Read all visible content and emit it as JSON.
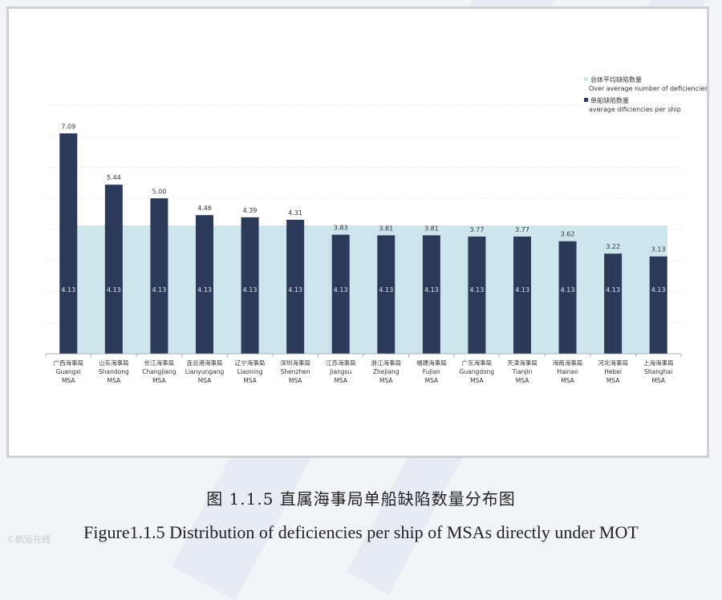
{
  "chart_data": {
    "type": "bar",
    "categories": [
      {
        "cn": "广西海事局",
        "en": "Guangxi",
        "suffix": "MSA"
      },
      {
        "cn": "山东海事局",
        "en": "Shandong",
        "suffix": "MSA"
      },
      {
        "cn": "长江海事局",
        "en": "Changjiang",
        "suffix": "MSA"
      },
      {
        "cn": "连云港海事局",
        "en": "Lianyungang",
        "suffix": "MSA"
      },
      {
        "cn": "辽宁海事局",
        "en": "Liaoning",
        "suffix": "MSA"
      },
      {
        "cn": "深圳海事局",
        "en": "Shenzhen",
        "suffix": "MSA"
      },
      {
        "cn": "江苏海事局",
        "en": "Jiangsu",
        "suffix": "MSA"
      },
      {
        "cn": "浙江海事局",
        "en": "Zhejiang",
        "suffix": "MSA"
      },
      {
        "cn": "福建海事局",
        "en": "Fujian",
        "suffix": "MSA"
      },
      {
        "cn": "广东海事局",
        "en": "Guangdong",
        "suffix": "MSA"
      },
      {
        "cn": "天津海事局",
        "en": "Tianjin",
        "suffix": "MSA"
      },
      {
        "cn": "海南海事局",
        "en": "Hainan",
        "suffix": "MSA"
      },
      {
        "cn": "河北海事局",
        "en": "Hebei",
        "suffix": "MSA"
      },
      {
        "cn": "上海海事局",
        "en": "Shanghai",
        "suffix": "MSA"
      }
    ],
    "series": [
      {
        "name": "单船缺陷数量",
        "name_en": "average dificiencies per ship",
        "color": "#2c3a59",
        "values": [
          7.09,
          5.44,
          5.0,
          4.46,
          4.39,
          4.31,
          3.83,
          3.81,
          3.81,
          3.77,
          3.77,
          3.62,
          3.22,
          3.13
        ],
        "labels": [
          "7.09",
          "5.44",
          "5.00",
          "4.46",
          "4.39",
          "4.31",
          "3.83",
          "3.81",
          "3.81",
          "3.77",
          "3.77",
          "3.62",
          "3.22",
          "3.13"
        ]
      },
      {
        "name": "总体平均缺陷数量",
        "name_en": "Over average number of deficiencies",
        "color": "#cde6ee",
        "value": 4.13,
        "label": "4.13"
      }
    ],
    "ylim": [
      0,
      8
    ],
    "grid": true,
    "legend": "top-right"
  },
  "caption": {
    "cn": "图 1.1.5 直属海事局单船缺陷数量分布图",
    "en": "Figure1.1.5 Distribution of deficiencies per ship of MSAs directly under MOT"
  },
  "colors": {
    "bar": "#2c3a59",
    "average_area": "#cde6ee",
    "grid": "#c8c8c8",
    "axis": "#999999"
  },
  "watermark": "©航运在线"
}
